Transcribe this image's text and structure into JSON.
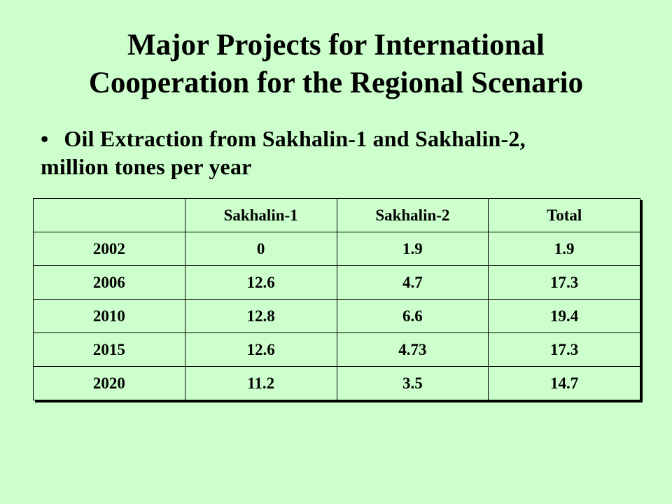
{
  "title": {
    "line1": "Major Projects for International",
    "line2": "Cooperation for the Regional Scenario"
  },
  "bullet": {
    "symbol": "•",
    "text_line1": "Oil Extraction from Sakhalin-1 and Sakhalin-2,",
    "text_line2": "million tones per year"
  },
  "table": {
    "headers": [
      "",
      "Sakhalin-1",
      "Sakhalin-2",
      "Total"
    ],
    "rows": [
      [
        "2002",
        "0",
        "1.9",
        "1.9"
      ],
      [
        "2006",
        "12.6",
        "4.7",
        "17.3"
      ],
      [
        "2010",
        "12.8",
        "6.6",
        "19.4"
      ],
      [
        "2015",
        "12.6",
        "4.73",
        "17.3"
      ],
      [
        "2020",
        "11.2",
        "3.5",
        "14.7"
      ]
    ]
  },
  "colors": {
    "background": "#ccffcc",
    "text": "#000000"
  }
}
